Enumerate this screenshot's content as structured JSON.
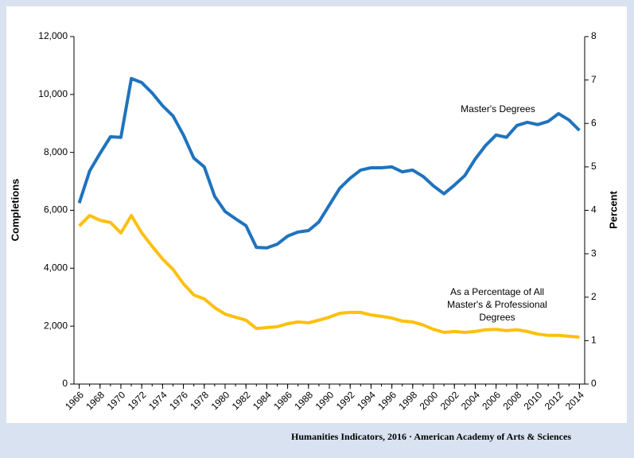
{
  "chart_data": {
    "type": "line",
    "y_label": "Completions",
    "y2_label": "Percent",
    "source": "Humanities Indicators, 2016 · American Academy of Arts & Sciences",
    "annotations": [
      {
        "series": 0,
        "lines": [
          "Master's Degrees"
        ]
      },
      {
        "series": 1,
        "lines": [
          "As a Percentage of All",
          "Master's & Professional",
          "Degrees"
        ]
      }
    ],
    "x": [
      1966,
      1967,
      1968,
      1969,
      1970,
      1971,
      1972,
      1973,
      1974,
      1975,
      1976,
      1977,
      1978,
      1979,
      1980,
      1981,
      1982,
      1983,
      1984,
      1985,
      1986,
      1987,
      1988,
      1989,
      1990,
      1991,
      1992,
      1993,
      1994,
      1995,
      1996,
      1997,
      1998,
      1999,
      2000,
      2001,
      2002,
      2003,
      2004,
      2005,
      2006,
      2007,
      2008,
      2009,
      2010,
      2011,
      2012,
      2013,
      2014
    ],
    "xlim": [
      1965.5,
      2014.5
    ],
    "xticks": [
      1966,
      1968,
      1970,
      1972,
      1974,
      1976,
      1978,
      1980,
      1982,
      1984,
      1986,
      1988,
      1990,
      1992,
      1994,
      1996,
      1998,
      2000,
      2002,
      2004,
      2006,
      2008,
      2010,
      2012,
      2014
    ],
    "ylim": [
      0,
      12000
    ],
    "yticks": [
      0,
      {
        "value": 2000,
        "label": "2,000"
      },
      {
        "value": 4000,
        "label": "4,000"
      },
      {
        "value": 6000,
        "label": "6,000"
      },
      {
        "value": 8000,
        "label": "8,000"
      },
      {
        "value": 10000,
        "label": "10,000"
      },
      {
        "value": 12000,
        "label": "12,000"
      }
    ],
    "y2lim": [
      0,
      8
    ],
    "y2ticks": [
      0,
      1,
      2,
      3,
      4,
      5,
      6,
      7,
      8
    ],
    "series": [
      {
        "name": "Master's Degrees",
        "color": "#1f73be",
        "axis": "y",
        "values": [
          6250,
          7360,
          7970,
          8540,
          8520,
          10550,
          10410,
          10050,
          9610,
          9260,
          8600,
          7800,
          7500,
          6480,
          5960,
          5710,
          5470,
          4720,
          4700,
          4830,
          5110,
          5250,
          5300,
          5600,
          6180,
          6760,
          7110,
          7390,
          7470,
          7470,
          7500,
          7330,
          7390,
          7170,
          6840,
          6570,
          6870,
          7200,
          7770,
          8240,
          8600,
          8520,
          8930,
          9040,
          8960,
          9070,
          9340,
          9120,
          8760
        ]
      },
      {
        "name": "As a Percentage of All Master's & Professional Degrees",
        "color": "#fcc00f",
        "axis": "y2",
        "values": [
          3.64,
          3.88,
          3.77,
          3.72,
          3.48,
          3.88,
          3.48,
          3.17,
          2.88,
          2.64,
          2.31,
          2.05,
          1.96,
          1.76,
          1.61,
          1.54,
          1.47,
          1.28,
          1.3,
          1.32,
          1.39,
          1.43,
          1.41,
          1.47,
          1.54,
          1.63,
          1.65,
          1.65,
          1.59,
          1.56,
          1.52,
          1.45,
          1.43,
          1.36,
          1.26,
          1.19,
          1.21,
          1.19,
          1.21,
          1.25,
          1.26,
          1.23,
          1.25,
          1.21,
          1.15,
          1.12,
          1.12,
          1.1,
          1.08
        ]
      }
    ]
  }
}
